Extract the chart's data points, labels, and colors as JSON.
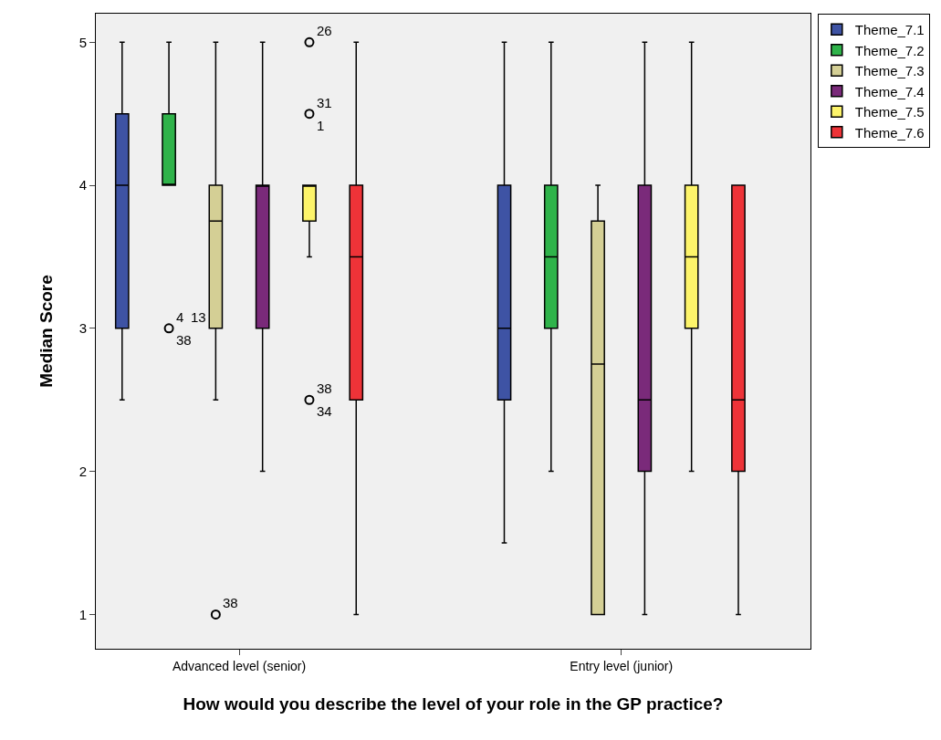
{
  "chart_data": {
    "type": "box",
    "xlabel": "How would you describe the level of your role in the GP practice?",
    "ylabel": "Median Score",
    "categories": [
      "Advanced level (senior)",
      "Entry level (junior)"
    ],
    "ylim": [
      0.76,
      5.2
    ],
    "yticks": [
      1,
      2,
      3,
      4,
      5
    ],
    "grid": false,
    "legend": "top right",
    "series": [
      {
        "name": "Theme_7.1",
        "color": "#3e53a4",
        "boxes": [
          {
            "low": 2.5,
            "q1": 3,
            "median": 4,
            "q3": 4.5,
            "high": 5
          },
          {
            "low": 1.5,
            "q1": 2.5,
            "median": 3,
            "q3": 4,
            "high": 5
          }
        ]
      },
      {
        "name": "Theme_7.2",
        "color": "#2fb34a",
        "boxes": [
          {
            "low": 4,
            "q1": 4,
            "median": 4,
            "q3": 4.5,
            "high": 5,
            "outliers": [
              3
            ]
          },
          {
            "low": 2,
            "q1": 3,
            "median": 3.5,
            "q3": 4,
            "high": 5
          }
        ]
      },
      {
        "name": "Theme_7.3",
        "color": "#d4cf95",
        "boxes": [
          {
            "low": 2.5,
            "q1": 3,
            "median": 3.75,
            "q3": 4,
            "high": 5,
            "outliers": [
              1
            ]
          },
          {
            "low": 1,
            "q1": 1,
            "median": 2.75,
            "q3": 3.75,
            "high": 4
          }
        ]
      },
      {
        "name": "Theme_7.4",
        "color": "#7a2a7a",
        "boxes": [
          {
            "low": 2,
            "q1": 3,
            "median": 4,
            "q3": 4,
            "high": 5
          },
          {
            "low": 1,
            "q1": 2,
            "median": 2.5,
            "q3": 4,
            "high": 5
          }
        ]
      },
      {
        "name": "Theme_7.5",
        "color": "#fdf46a",
        "boxes": [
          {
            "low": 3.5,
            "q1": 3.75,
            "median": 4,
            "q3": 4,
            "high": 4,
            "outliers": [
              5,
              4.5,
              2.5
            ]
          },
          {
            "low": 2,
            "q1": 3,
            "median": 3.5,
            "q3": 4,
            "high": 5
          }
        ]
      },
      {
        "name": "Theme_7.6",
        "color": "#ee3338",
        "boxes": [
          {
            "low": 1,
            "q1": 2.5,
            "median": 3.5,
            "q3": 4,
            "high": 5
          },
          {
            "low": 1,
            "q1": 2,
            "median": 2.5,
            "q3": 4,
            "high": 4
          }
        ]
      }
    ],
    "annotations": [
      "4",
      "38",
      "13",
      "38",
      "26",
      "31",
      "1",
      "38",
      "34"
    ]
  }
}
